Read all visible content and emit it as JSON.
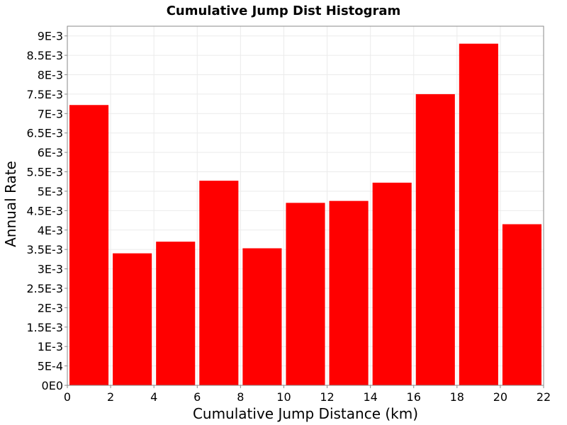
{
  "chart_data": {
    "type": "bar",
    "title": "Cumulative Jump Dist Histogram",
    "xlabel": "Cumulative Jump Distance (km)",
    "ylabel": "Annual Rate",
    "xlim": [
      0,
      22
    ],
    "ylim": [
      0,
      0.00925
    ],
    "x_ticks": [
      0,
      2,
      4,
      6,
      8,
      10,
      12,
      14,
      16,
      18,
      20,
      22
    ],
    "x_tick_labels": [
      "0",
      "2",
      "4",
      "6",
      "8",
      "10",
      "12",
      "14",
      "16",
      "18",
      "20",
      "22"
    ],
    "y_ticks": [
      0,
      0.0005,
      0.001,
      0.0015,
      0.002,
      0.0025,
      0.003,
      0.0035,
      0.004,
      0.0045,
      0.005,
      0.0055,
      0.006,
      0.0065,
      0.007,
      0.0075,
      0.008,
      0.0085,
      0.009
    ],
    "y_tick_labels": [
      "0E0",
      "5E-4",
      "1E-3",
      "1.5E-3",
      "2E-3",
      "2.5E-3",
      "3E-3",
      "3.5E-3",
      "4E-3",
      "4.5E-3",
      "5E-3",
      "5.5E-3",
      "6E-3",
      "6.5E-3",
      "7E-3",
      "7.5E-3",
      "8E-3",
      "8.5E-3",
      "9E-3"
    ],
    "grid": true,
    "bin_edges": [
      [
        0,
        2
      ],
      [
        2,
        4
      ],
      [
        4,
        6
      ],
      [
        6,
        8
      ],
      [
        8,
        10
      ],
      [
        10,
        12
      ],
      [
        12,
        14
      ],
      [
        14,
        16
      ],
      [
        16,
        18
      ],
      [
        18,
        20
      ],
      [
        20,
        22
      ]
    ],
    "values": [
      0.00722,
      0.0034,
      0.0037,
      0.00527,
      0.00353,
      0.0047,
      0.00475,
      0.00522,
      0.0075,
      0.0088,
      0.00415
    ],
    "color": "#ff0000"
  }
}
